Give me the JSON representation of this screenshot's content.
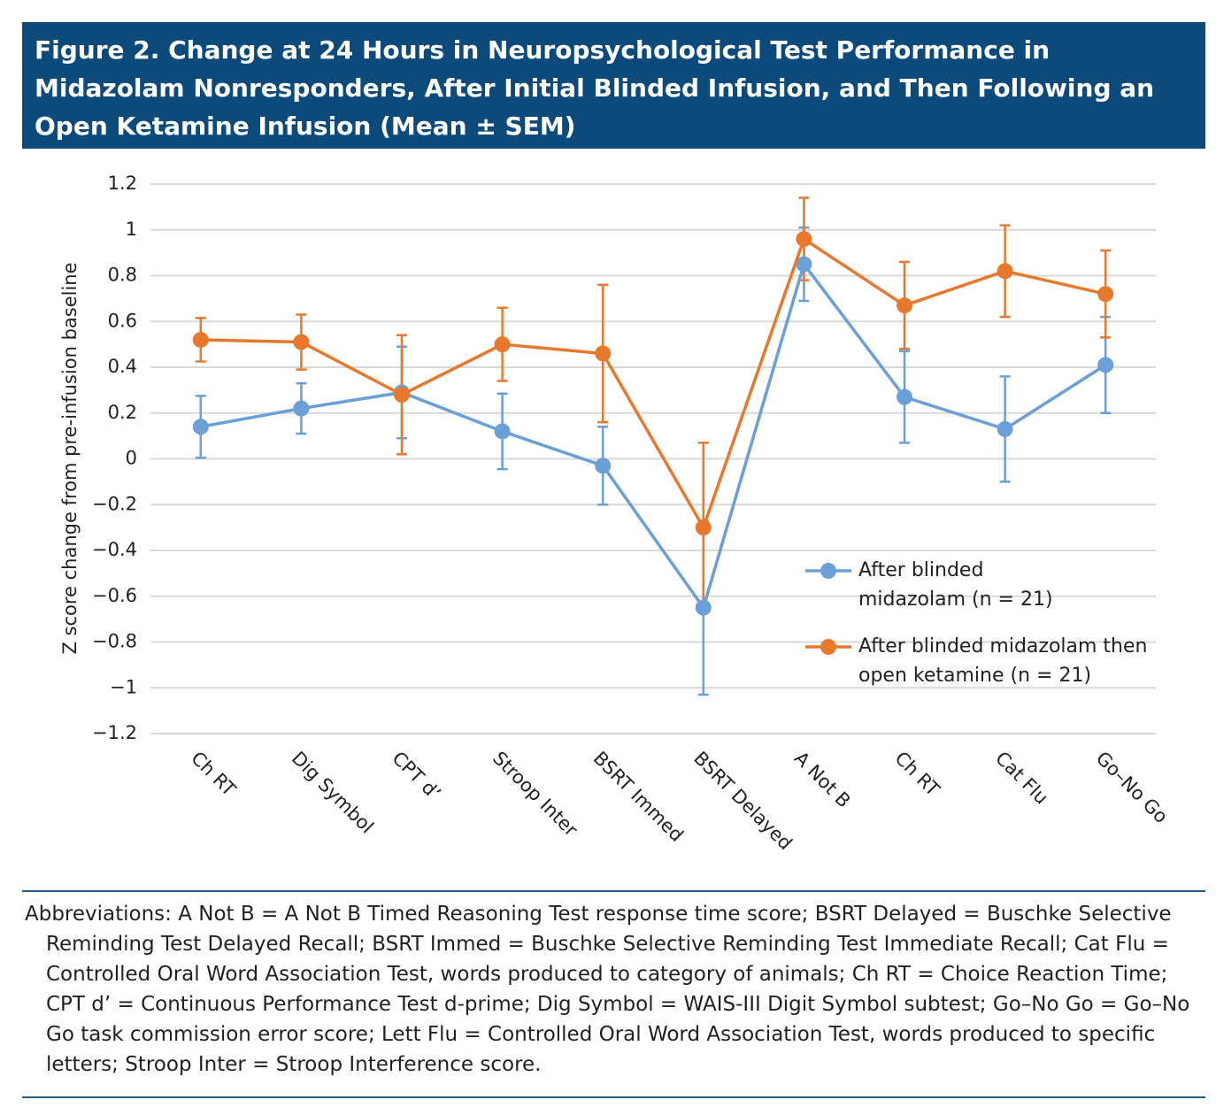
{
  "chart_data": {
    "type": "line",
    "title": "Figure 2. Change at 24 Hours in Neuropsychological Test Performance in Midazolam Nonresponders, After Initial Blinded Infusion, and Then Following an Open Ketamine Infusion (Mean ± SEM)",
    "y_label": "Z score change from pre-infusion baseline",
    "categories": [
      "Ch RT",
      "Dig Symbol",
      "CPT d’",
      "Stroop Inter",
      "BSRT Immed",
      "BSRT Delayed",
      "A Not B",
      "Ch RT",
      "Cat Flu",
      "Go–No Go"
    ],
    "series": [
      {
        "name": "After blinded midazolam (n = 21)",
        "color": "#6a9fd8",
        "values": [
          0.14,
          0.22,
          0.29,
          0.12,
          -0.03,
          -0.65,
          0.85,
          0.27,
          0.13,
          0.41
        ],
        "errors": [
          0.135,
          0.11,
          0.2,
          0.165,
          0.17,
          0.38,
          0.16,
          0.2,
          0.23,
          0.21
        ]
      },
      {
        "name": "After blinded midazolam then open ketamine (n = 21)",
        "color": "#e8792c",
        "values": [
          0.52,
          0.51,
          0.28,
          0.5,
          0.46,
          -0.3,
          0.96,
          0.67,
          0.82,
          0.72
        ],
        "errors": [
          0.095,
          0.12,
          0.26,
          0.16,
          0.3,
          0.37,
          0.18,
          0.19,
          0.2,
          0.19
        ]
      }
    ],
    "ylim": [
      -1.2,
      1.2
    ],
    "yticks": [
      {
        "value": -1.2,
        "label": "−1.2"
      },
      {
        "value": -1,
        "label": "−1"
      },
      {
        "value": -0.8,
        "label": "−0.8"
      },
      {
        "value": -0.6,
        "label": "−0.6"
      },
      {
        "value": -0.4,
        "label": "−0.4"
      },
      {
        "value": -0.2,
        "label": "−0.2"
      },
      0,
      0.2,
      0.4,
      0.6,
      0.8,
      1,
      1.2
    ],
    "grid": true,
    "legend": "right",
    "footnote": "Abbreviations: A Not B = A Not B Timed Reasoning Test response time score; BSRT Delayed = Buschke Selective Reminding Test Delayed Recall; BSRT Immed = Buschke Selective Reminding Test Immediate Recall; Cat Flu = Controlled Oral Word Association Test, words produced to category of animals; Ch RT = Choice Reaction Time; CPT d’ = Continuous Performance Test d-prime; Dig Symbol = WAIS-III Digit Symbol subtest; Go–No Go = Go–No Go task commission error score; Lett Flu = Controlled Oral Word Association Test, words produced to specific letters; Stroop Inter = Stroop Interference score."
  }
}
